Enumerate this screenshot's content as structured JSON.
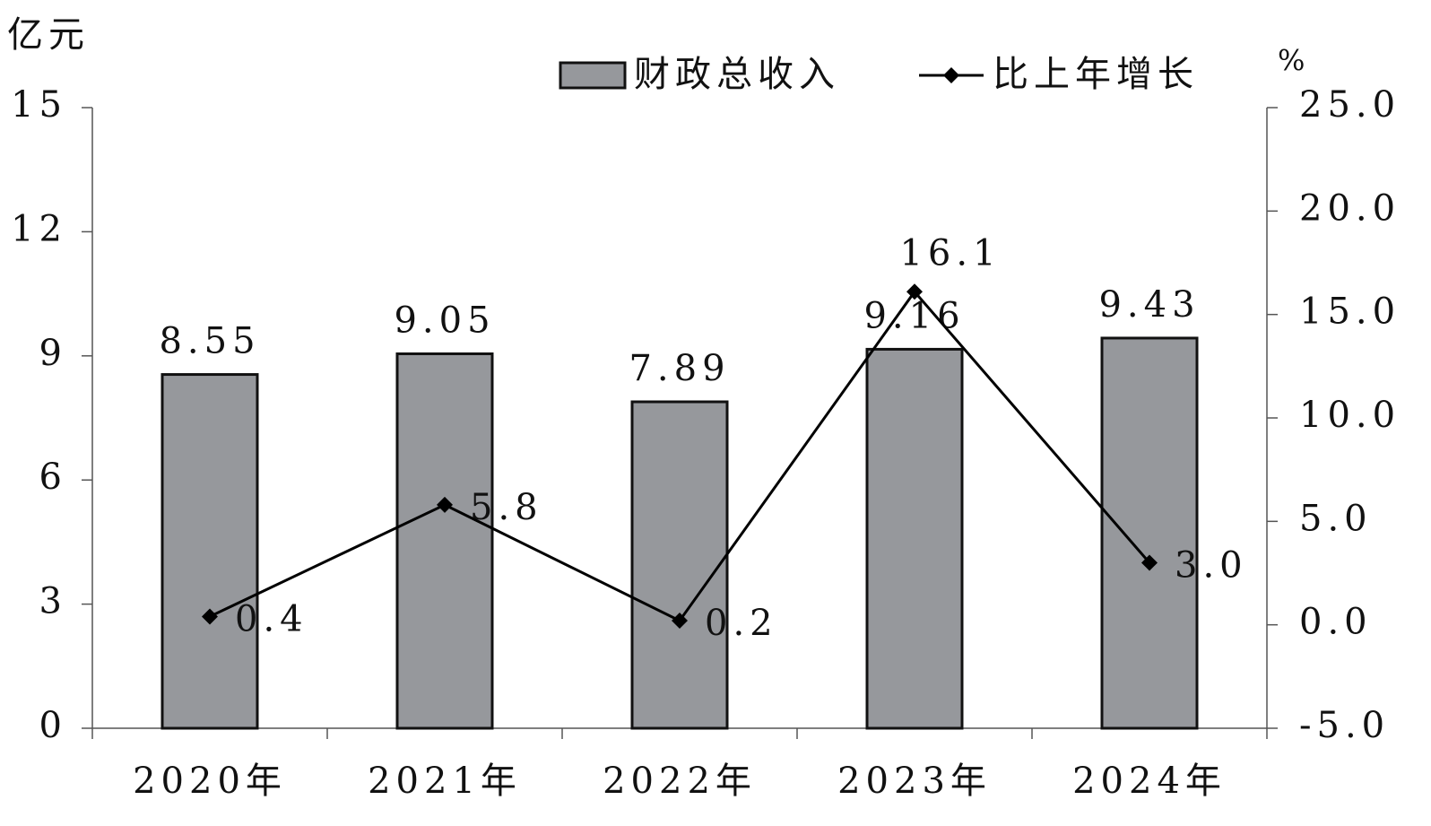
{
  "chart_data": {
    "type": "bar",
    "y_label": "亿元",
    "y2_label": "%",
    "categories": [
      "2020年",
      "2021年",
      "2022年",
      "2023年",
      "2024年"
    ],
    "series": [
      {
        "name": "财政总收入",
        "type": "bar",
        "color": "#96989c",
        "values": [
          8.55,
          9.05,
          7.89,
          9.16,
          9.43
        ]
      },
      {
        "name": "比上年增长",
        "type": "line",
        "axis": "y2",
        "color": "#000000",
        "values": [
          0.4,
          5.8,
          0.2,
          16.1,
          3.0
        ],
        "value_labels": [
          "0.4",
          "5.8",
          "0.2",
          "16.1",
          "3.0"
        ]
      }
    ],
    "ylim": [
      0,
      15
    ],
    "yticks": [
      0,
      3,
      6,
      9,
      12,
      15
    ],
    "y2lim": [
      -5,
      25
    ],
    "y2ticks": [
      {
        "value": -5,
        "label": "-5.0"
      },
      {
        "value": 0,
        "label": "0.0"
      },
      {
        "value": 5,
        "label": "5.0"
      },
      {
        "value": 10,
        "label": "10.0"
      },
      {
        "value": 15,
        "label": "15.0"
      },
      {
        "value": 20,
        "label": "20.0"
      },
      {
        "value": 25,
        "label": "25.0"
      }
    ],
    "grid": false,
    "legend": "top"
  }
}
